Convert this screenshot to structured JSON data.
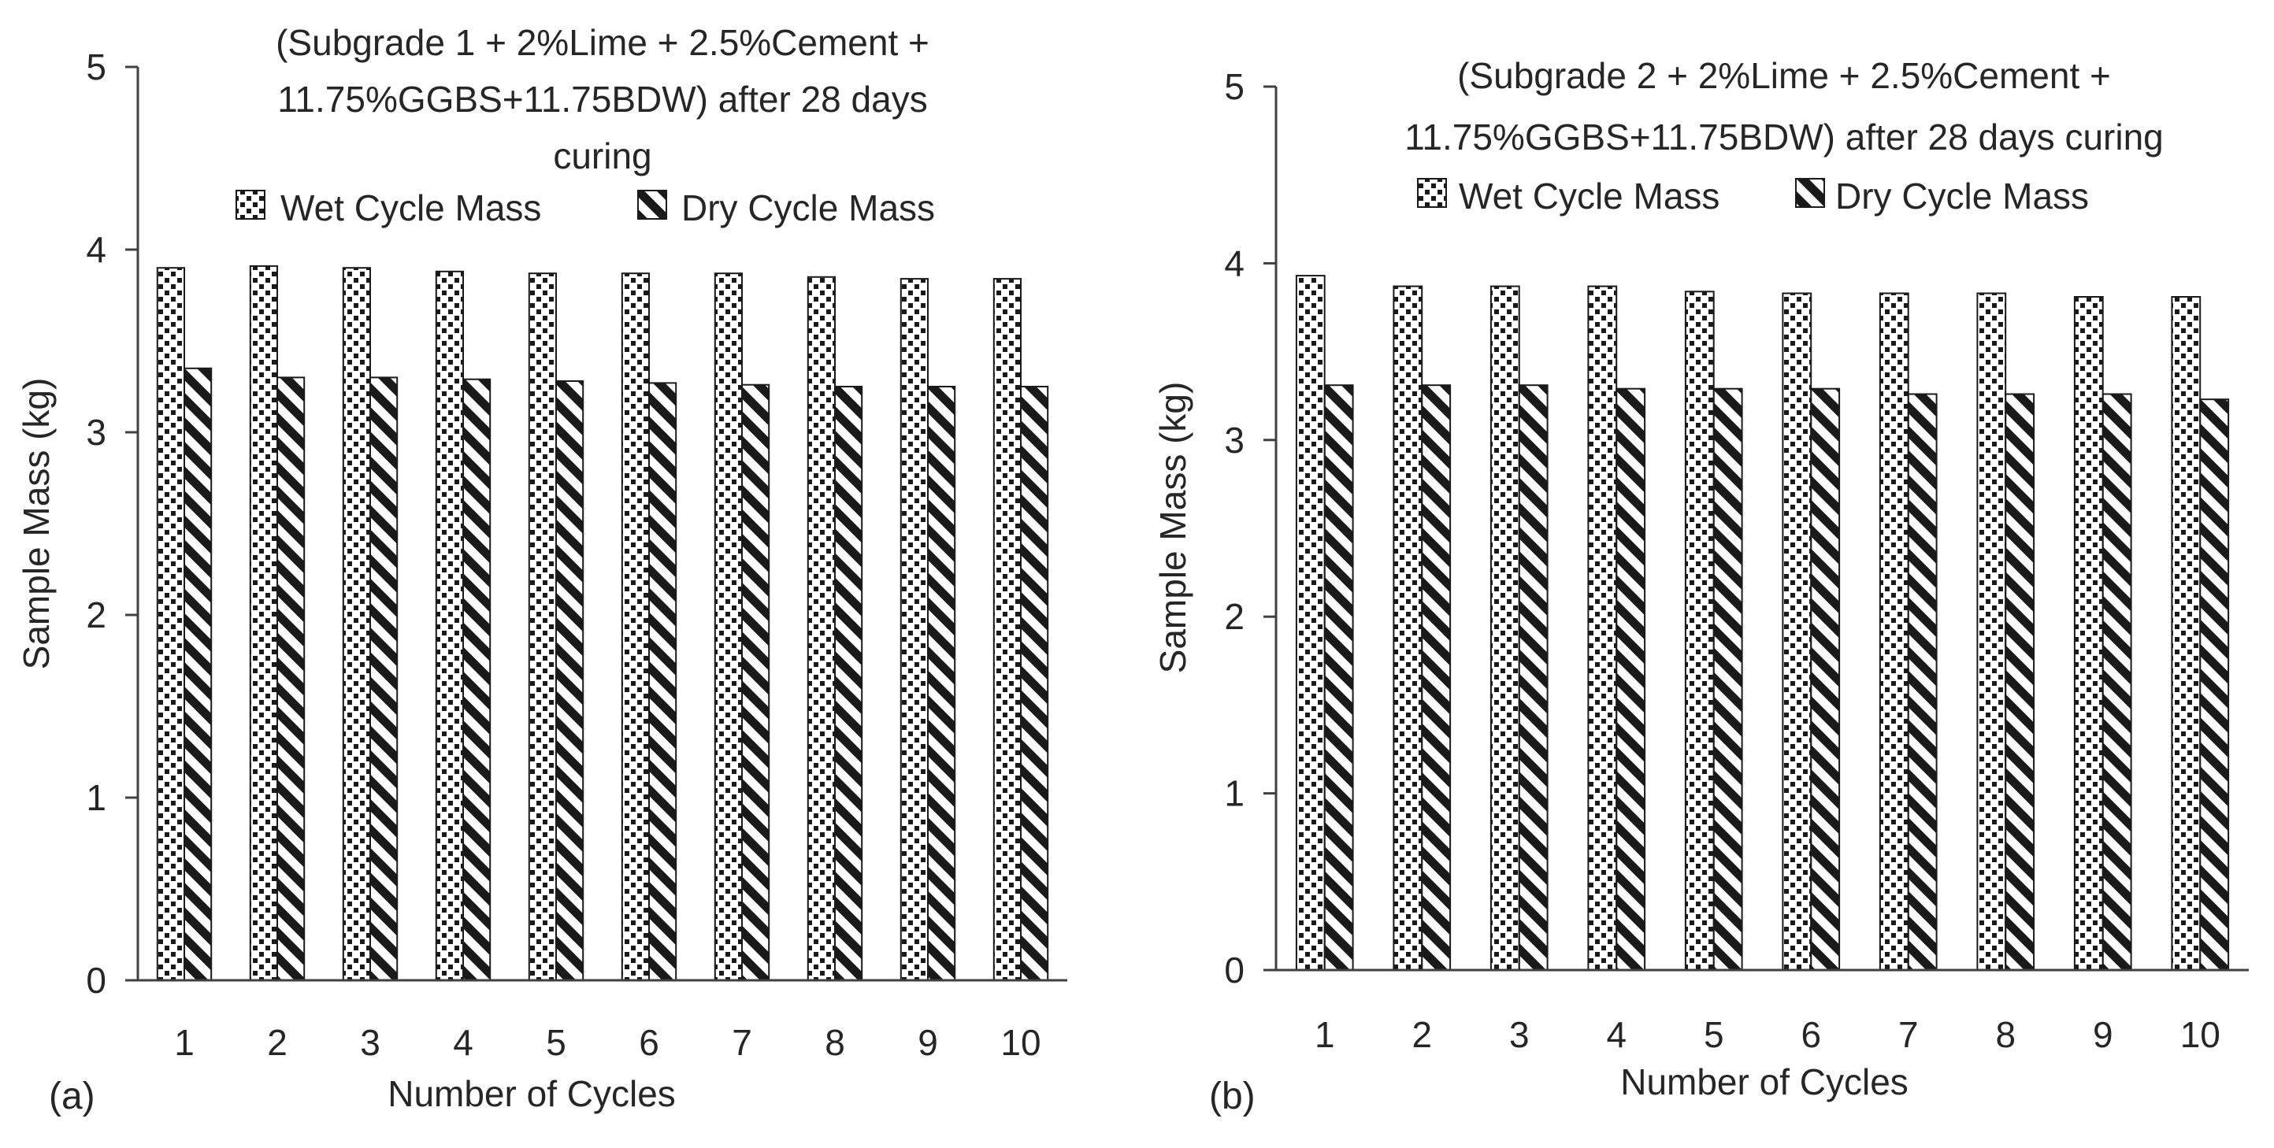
{
  "chart_data": [
    {
      "type": "bar",
      "panel_label": "(a)",
      "title_lines": [
        "(Subgrade 1 + 2%Lime + 2.5%Cement +",
        "11.75%GGBS+11.75BDW) after 28 days",
        "curing"
      ],
      "xlabel": "Number of Cycles",
      "ylabel": "Sample Mass  (kg)",
      "ylim": [
        0,
        5
      ],
      "yticks": [
        "0",
        "1",
        "2",
        "3",
        "4",
        "5"
      ],
      "categories": [
        "1",
        "2",
        "3",
        "4",
        "5",
        "6",
        "7",
        "8",
        "9",
        "10"
      ],
      "legend_position": "top",
      "series": [
        {
          "name": "Wet Cycle Mass",
          "pattern": "dotted",
          "values": [
            3.9,
            3.91,
            3.9,
            3.88,
            3.87,
            3.87,
            3.87,
            3.85,
            3.84,
            3.84
          ]
        },
        {
          "name": "Dry Cycle Mass",
          "pattern": "hatched",
          "values": [
            3.35,
            3.3,
            3.3,
            3.29,
            3.28,
            3.27,
            3.26,
            3.25,
            3.25,
            3.25
          ]
        }
      ]
    },
    {
      "type": "bar",
      "panel_label": "(b)",
      "title_lines": [
        "(Subgrade 2 + 2%Lime + 2.5%Cement +",
        "11.75%GGBS+11.75BDW) after 28 days curing"
      ],
      "xlabel": "Number of Cycles",
      "ylabel": "Sample Mass  (kg)",
      "ylim": [
        0,
        5
      ],
      "yticks": [
        "0",
        "1",
        "2",
        "3",
        "4",
        "5"
      ],
      "categories": [
        "1",
        "2",
        "3",
        "4",
        "5",
        "6",
        "7",
        "8",
        "9",
        "10"
      ],
      "legend_position": "top",
      "series": [
        {
          "name": "Wet Cycle Mass",
          "pattern": "dotted",
          "values": [
            3.93,
            3.87,
            3.87,
            3.87,
            3.84,
            3.83,
            3.83,
            3.83,
            3.81,
            3.81
          ]
        },
        {
          "name": "Dry Cycle Mass",
          "pattern": "hatched",
          "values": [
            3.31,
            3.31,
            3.31,
            3.29,
            3.29,
            3.29,
            3.26,
            3.26,
            3.26,
            3.23
          ]
        }
      ]
    }
  ]
}
